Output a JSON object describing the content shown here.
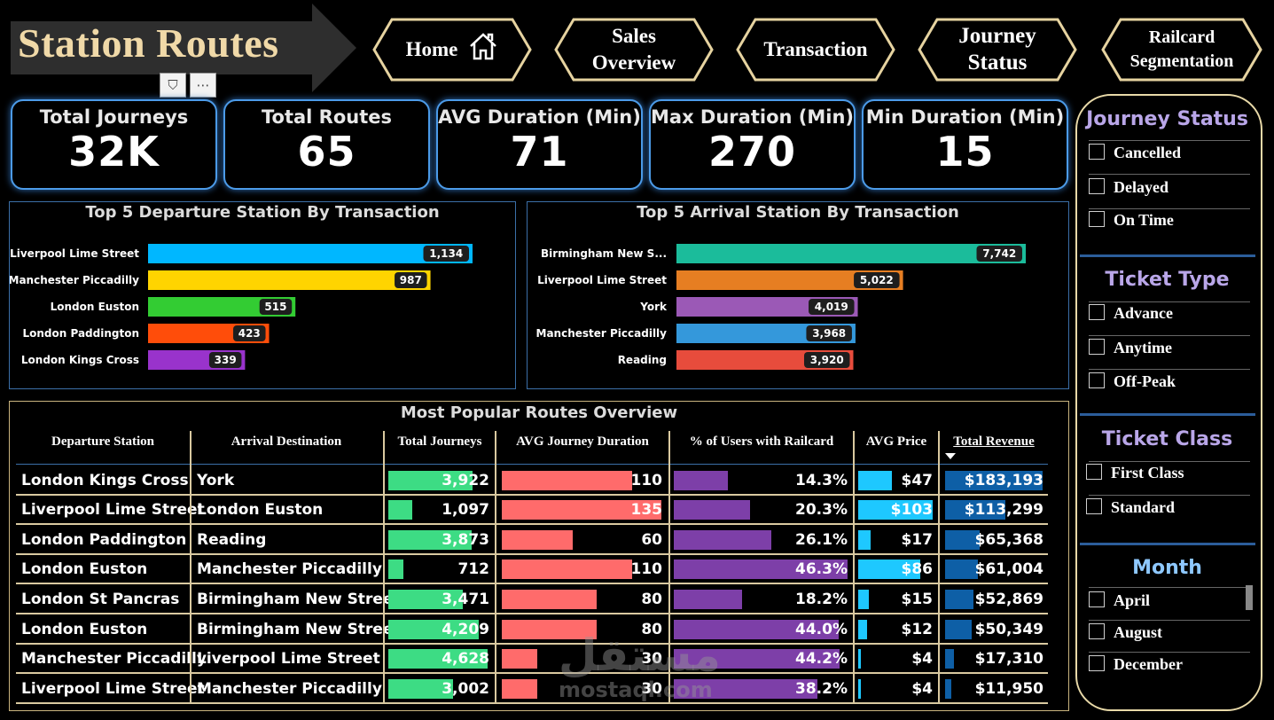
{
  "page": {
    "title": "Station Routes"
  },
  "nav": [
    {
      "id": "home",
      "label": "Home"
    },
    {
      "id": "sales",
      "label": "Sales Overview"
    },
    {
      "id": "transaction",
      "label": "Transaction"
    },
    {
      "id": "journey",
      "label": "Journey Status"
    },
    {
      "id": "railcard",
      "label": "Railcard Segmentation"
    }
  ],
  "kpis": [
    {
      "label": "Total Journeys",
      "value": "32K"
    },
    {
      "label": "Total Routes",
      "value": "65"
    },
    {
      "label": "AVG Duration (Min)",
      "value": "71"
    },
    {
      "label": "Max Duration (Min)",
      "value": "270"
    },
    {
      "label": "Min Duration (Min)",
      "value": "15"
    }
  ],
  "chart_data": [
    {
      "type": "bar",
      "title": "Top 5 Departure Station By Transaction",
      "categories": [
        "Liverpool Lime Street",
        "Manchester Piccadilly",
        "London Euston",
        "London Paddington",
        "London Kings Cross"
      ],
      "values": [
        1134,
        987,
        515,
        423,
        339
      ],
      "labels": [
        "1,134",
        "987",
        "515",
        "423",
        "339"
      ],
      "colors": [
        "#00b7ff",
        "#ffd400",
        "#33cc33",
        "#ff4d0a",
        "#9933cc"
      ]
    },
    {
      "type": "bar",
      "title": "Top 5 Arrival Station By Transaction",
      "categories": [
        "Birmingham New S...",
        "Liverpool Lime Street",
        "York",
        "Manchester Piccadilly",
        "Reading"
      ],
      "values": [
        7742,
        5022,
        4019,
        3968,
        3920
      ],
      "labels": [
        "7,742",
        "5,022",
        "4,019",
        "3,968",
        "3,920"
      ],
      "colors": [
        "#1bbc9b",
        "#e67e22",
        "#9b59b6",
        "#3498db",
        "#e74c3c"
      ]
    }
  ],
  "table": {
    "title": "Most Popular Routes Overview",
    "headers": [
      "Departure Station",
      "Arrival Destination",
      "Total Journeys",
      "AVG Journey Duration",
      "% of Users with Railcard",
      "AVG Price",
      "Total Revenue"
    ],
    "rows": [
      {
        "dep": "London Kings Cross",
        "arr": "York",
        "journeys": "3,922",
        "j": 3922,
        "dur": "110",
        "d": 110,
        "rail": "14.3%",
        "r": 14.3,
        "price": "$47",
        "p": 47,
        "rev": "$183,193",
        "v": 183193
      },
      {
        "dep": "Liverpool Lime Street",
        "arr": "London Euston",
        "journeys": "1,097",
        "j": 1097,
        "dur": "135",
        "d": 135,
        "rail": "20.3%",
        "r": 20.3,
        "price": "$103",
        "p": 103,
        "rev": "$113,299",
        "v": 113299
      },
      {
        "dep": "London Paddington",
        "arr": "Reading",
        "journeys": "3,873",
        "j": 3873,
        "dur": "60",
        "d": 60,
        "rail": "26.1%",
        "r": 26.1,
        "price": "$17",
        "p": 17,
        "rev": "$65,368",
        "v": 65368
      },
      {
        "dep": "London Euston",
        "arr": "Manchester Piccadilly",
        "journeys": "712",
        "j": 712,
        "dur": "110",
        "d": 110,
        "rail": "46.3%",
        "r": 46.3,
        "price": "$86",
        "p": 86,
        "rev": "$61,004",
        "v": 61004
      },
      {
        "dep": "London St Pancras",
        "arr": "Birmingham New Street",
        "journeys": "3,471",
        "j": 3471,
        "dur": "80",
        "d": 80,
        "rail": "18.2%",
        "r": 18.2,
        "price": "$15",
        "p": 15,
        "rev": "$52,869",
        "v": 52869
      },
      {
        "dep": "London Euston",
        "arr": "Birmingham New Street",
        "journeys": "4,209",
        "j": 4209,
        "dur": "80",
        "d": 80,
        "rail": "44.0%",
        "r": 44.0,
        "price": "$12",
        "p": 12,
        "rev": "$50,349",
        "v": 50349
      },
      {
        "dep": "Manchester Piccadilly",
        "arr": "Liverpool Lime Street",
        "journeys": "4,628",
        "j": 4628,
        "dur": "30",
        "d": 30,
        "rail": "44.2%",
        "r": 44.2,
        "price": "$4",
        "p": 4,
        "rev": "$17,310",
        "v": 17310
      },
      {
        "dep": "Liverpool Lime Street",
        "arr": "Manchester Piccadilly",
        "journeys": "3,002",
        "j": 3002,
        "dur": "30",
        "d": 30,
        "rail": "38.2%",
        "r": 38.2,
        "price": "$4",
        "p": 4,
        "rev": "$11,950",
        "v": 11950
      }
    ]
  },
  "slicers": {
    "journey_status": {
      "title": "Journey Status",
      "options": [
        "Cancelled",
        "Delayed",
        "On Time"
      ]
    },
    "ticket_type": {
      "title": "Ticket Type",
      "options": [
        "Advance",
        "Anytime",
        "Off-Peak"
      ]
    },
    "ticket_class": {
      "title": "Ticket Class",
      "options": [
        "First Class",
        "Standard"
      ]
    },
    "month": {
      "title": "Month",
      "options": [
        "April",
        "August",
        "December"
      ]
    }
  },
  "watermark": {
    "arabic": "مستقل",
    "latin": "mostaql.com"
  },
  "colors": {
    "bg": "#000000",
    "kpi_border": "#4c9be8",
    "gold": "#e8d9a8",
    "journeys_bar": "#3ddc84",
    "duration_bar": "#ff6b6b",
    "railcard_bar": "#7d3fa8",
    "price_bar": "#1ec8ff",
    "revenue_bar": "#0e5fa6"
  }
}
